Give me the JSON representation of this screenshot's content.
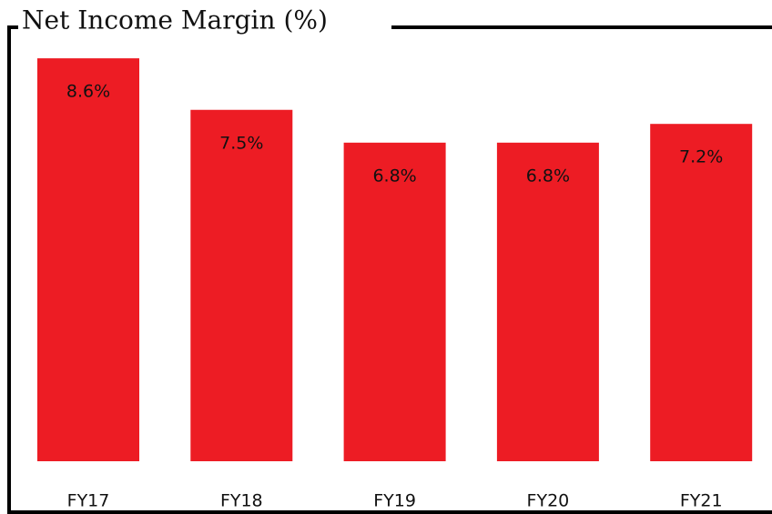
{
  "chart_data": {
    "type": "bar",
    "title": "Net Income Margin (%)",
    "categories": [
      "FY17",
      "FY18",
      "FY19",
      "FY20",
      "FY21"
    ],
    "values": [
      8.6,
      7.5,
      6.8,
      6.8,
      7.2
    ],
    "value_labels": [
      "8.6%",
      "7.5%",
      "6.8%",
      "6.8%",
      "7.2%"
    ],
    "color": "#ed1c24"
  }
}
